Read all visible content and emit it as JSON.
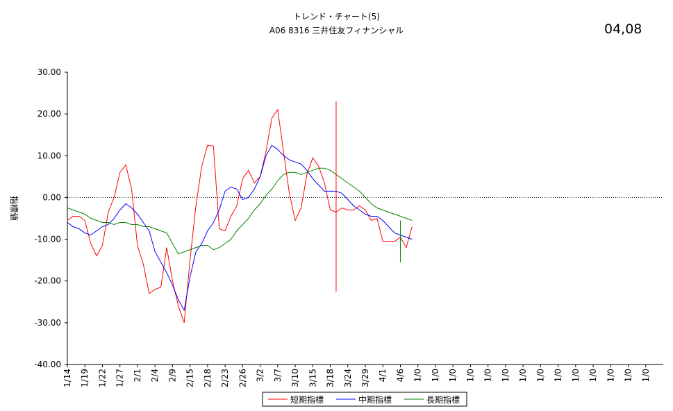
{
  "header": {
    "title_line1": "トレンド・チャート(5)",
    "title_line2": "A06  8316 三井住友フィナンシャル",
    "corner_label": "04,08"
  },
  "chart_data": {
    "type": "line",
    "ylabel": "指標値",
    "ylim": [
      -40,
      30
    ],
    "yticks": [
      "30.00",
      "20.00",
      "10.00",
      "0.00",
      "-10.00",
      "-20.00",
      "-30.00",
      "-40.00"
    ],
    "xtick_labels": [
      "1/14",
      "1/19",
      "1/22",
      "1/27",
      "2/1",
      "2/4",
      "2/9",
      "2/15",
      "2/18",
      "2/23",
      "2/26",
      "3/2",
      "3/7",
      "3/10",
      "3/15",
      "3/18",
      "3/24",
      "3/29",
      "4/1",
      "4/6",
      "1/0",
      "1/0",
      "1/0",
      "1/0",
      "1/0",
      "1/0",
      "1/0",
      "1/0",
      "1/0",
      "1/0",
      "1/0",
      "1/0",
      "1/0",
      "1/0"
    ],
    "points_per_label": 3,
    "zero_line": "dotted",
    "grid": false,
    "legend_position": "bottom-center",
    "colors": {
      "short": "#ff0000",
      "mid": "#0000ff",
      "long": "#008000"
    },
    "series": [
      {
        "name": "短期指標",
        "color": "#ff0000",
        "values": [
          -5.5,
          -4.5,
          -4.5,
          -5.5,
          -11,
          -14,
          -11.5,
          -3.5,
          0,
          6,
          7.8,
          2,
          -11.5,
          -16,
          -23,
          -22,
          -21.5,
          -12,
          -20,
          -26,
          -30,
          -15,
          -2,
          7.5,
          12.5,
          12.3,
          -7.5,
          -8,
          -4.5,
          -2,
          4.5,
          6.5,
          3.5,
          5,
          11,
          19,
          21,
          11,
          1,
          -5.5,
          -2.5,
          5.5,
          9.5,
          7.5,
          3.5,
          -3,
          -3.5,
          -2.5,
          -3,
          -3,
          -2,
          -3,
          -5.5,
          -5,
          -10.5,
          -10.5,
          -10.5,
          -9.5,
          -12,
          -7
        ]
      },
      {
        "name": "中期指標",
        "color": "#0000ff",
        "values": [
          -6,
          -7,
          -7.5,
          -8.5,
          -9,
          -8,
          -7,
          -6.5,
          -5,
          -3,
          -1.5,
          -2.5,
          -4,
          -6,
          -8,
          -13,
          -15.5,
          -18,
          -21,
          -24.5,
          -27,
          -19,
          -13,
          -11,
          -8,
          -6,
          -3,
          1.5,
          2.5,
          2,
          -0.5,
          0,
          2,
          5,
          10,
          12.5,
          11.5,
          10,
          9,
          8.5,
          8,
          6.5,
          4.5,
          3,
          1.5,
          1.5,
          1.5,
          1,
          -0.5,
          -2,
          -3,
          -4,
          -4.5,
          -4.5,
          -5.5,
          -7,
          -8.5,
          -9,
          -9.5,
          -10
        ]
      },
      {
        "name": "長期指標",
        "color": "#008000",
        "values": [
          -2.5,
          -3,
          -3.5,
          -4,
          -5,
          -5.5,
          -6,
          -6,
          -6.5,
          -6,
          -6,
          -6.5,
          -6.5,
          -7,
          -7,
          -7.5,
          -8,
          -8.5,
          -11,
          -13.5,
          -13,
          -12.5,
          -12,
          -11.5,
          -11.5,
          -12.5,
          -12,
          -11,
          -10,
          -8,
          -6.5,
          -5,
          -3,
          -1.5,
          0.5,
          2,
          4,
          5.5,
          6,
          6,
          5.5,
          6,
          6.5,
          7,
          7,
          6.5,
          5.5,
          4.5,
          3.5,
          2.5,
          1.5,
          0,
          -1.5,
          -2.5,
          -3,
          -3.5,
          -4,
          -4.5,
          -5,
          -5.5
        ]
      }
    ],
    "markers": [
      {
        "color": "#ff0000",
        "x_index": 46,
        "from": -22.5,
        "to": 23
      },
      {
        "color": "#008000",
        "x_index": 57,
        "from": -15.5,
        "to": -5.5
      }
    ]
  }
}
